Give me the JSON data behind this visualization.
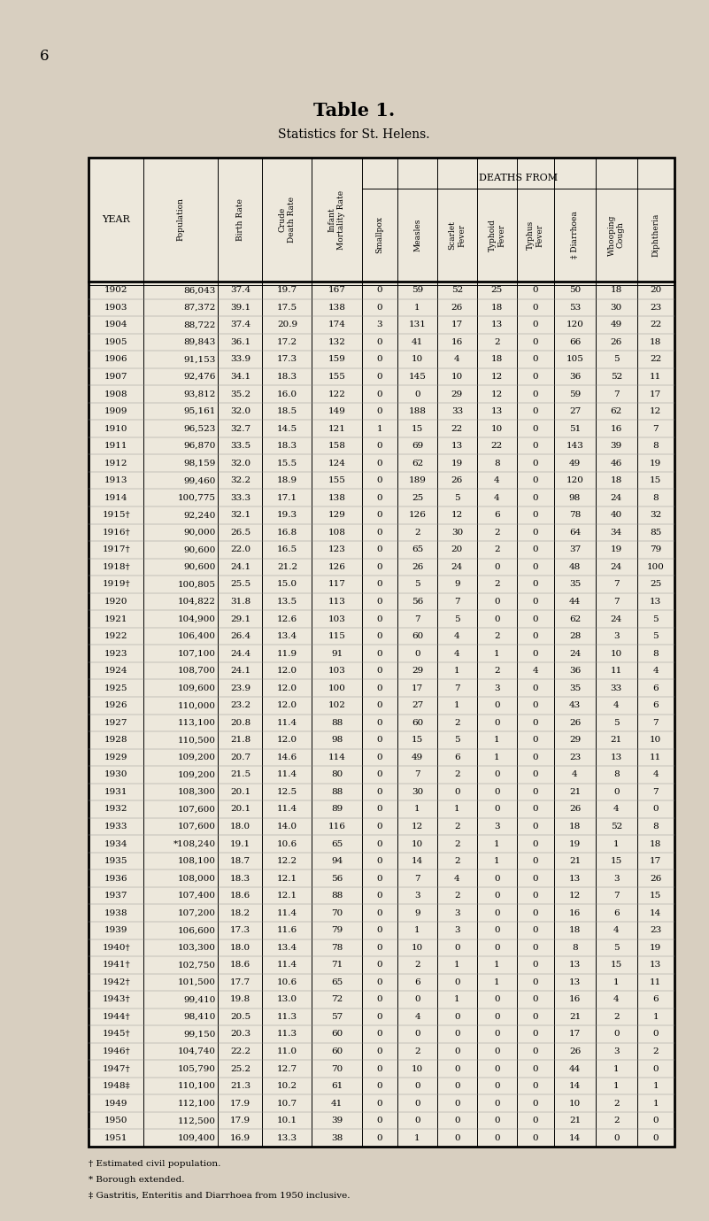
{
  "title": "Table 1.",
  "subtitle": "Statistics for St. Helens.",
  "page_number": "6",
  "col_headers": [
    "YEAR",
    "Population",
    "Birth Rate",
    "Crude\nDeath Rate",
    "Infant\nMortality Rate",
    "Smallpox",
    "Measles",
    "Scarlet\nFever",
    "Typhoid\nFever",
    "Typhus\nFever",
    "‡ Diarrhoea",
    "Whooping\nCough",
    "Diphtheria"
  ],
  "deaths_from_col": 5,
  "rows": [
    [
      "1902",
      "86,043",
      "37.4",
      "19.7",
      "167",
      "0",
      "59",
      "52",
      "25",
      "0",
      "50",
      "18",
      "20"
    ],
    [
      "1903",
      "87,372",
      "39.1",
      "17.5",
      "138",
      "0",
      "1",
      "26",
      "18",
      "0",
      "53",
      "30",
      "23"
    ],
    [
      "1904",
      "88,722",
      "37.4",
      "20.9",
      "174",
      "3",
      "131",
      "17",
      "13",
      "0",
      "120",
      "49",
      "22"
    ],
    [
      "1905",
      "89,843",
      "36.1",
      "17.2",
      "132",
      "0",
      "41",
      "16",
      "2",
      "0",
      "66",
      "26",
      "18"
    ],
    [
      "1906",
      "91,153",
      "33.9",
      "17.3",
      "159",
      "0",
      "10",
      "4",
      "18",
      "0",
      "105",
      "5",
      "22"
    ],
    [
      "1907",
      "92,476",
      "34.1",
      "18.3",
      "155",
      "0",
      "145",
      "10",
      "12",
      "0",
      "36",
      "52",
      "11"
    ],
    [
      "1908",
      "93,812",
      "35.2",
      "16.0",
      "122",
      "0",
      "0",
      "29",
      "12",
      "0",
      "59",
      "7",
      "17"
    ],
    [
      "1909",
      "95,161",
      "32.0",
      "18.5",
      "149",
      "0",
      "188",
      "33",
      "13",
      "0",
      "27",
      "62",
      "12"
    ],
    [
      "1910",
      "96,523",
      "32.7",
      "14.5",
      "121",
      "1",
      "15",
      "22",
      "10",
      "0",
      "51",
      "16",
      "7"
    ],
    [
      "1911",
      "96,870",
      "33.5",
      "18.3",
      "158",
      "0",
      "69",
      "13",
      "22",
      "0",
      "143",
      "39",
      "8"
    ],
    [
      "1912",
      "98,159",
      "32.0",
      "15.5",
      "124",
      "0",
      "62",
      "19",
      "8",
      "0",
      "49",
      "46",
      "19"
    ],
    [
      "1913",
      "99,460",
      "32.2",
      "18.9",
      "155",
      "0",
      "189",
      "26",
      "4",
      "0",
      "120",
      "18",
      "15"
    ],
    [
      "1914",
      "100,775",
      "33.3",
      "17.1",
      "138",
      "0",
      "25",
      "5",
      "4",
      "0",
      "98",
      "24",
      "8"
    ],
    [
      "1915†",
      "92,240",
      "32.1",
      "19.3",
      "129",
      "0",
      "126",
      "12",
      "6",
      "0",
      "78",
      "40",
      "32"
    ],
    [
      "1916†",
      "90,000",
      "26.5",
      "16.8",
      "108",
      "0",
      "2",
      "30",
      "2",
      "0",
      "64",
      "34",
      "85"
    ],
    [
      "1917†",
      "90,600",
      "22.0",
      "16.5",
      "123",
      "0",
      "65",
      "20",
      "2",
      "0",
      "37",
      "19",
      "79"
    ],
    [
      "1918†",
      "90,600",
      "24.1",
      "21.2",
      "126",
      "0",
      "26",
      "24",
      "0",
      "0",
      "48",
      "24",
      "100"
    ],
    [
      "1919†",
      "100,805",
      "25.5",
      "15.0",
      "117",
      "0",
      "5",
      "9",
      "2",
      "0",
      "35",
      "7",
      "25"
    ],
    [
      "1920",
      "104,822",
      "31.8",
      "13.5",
      "113",
      "0",
      "56",
      "7",
      "0",
      "0",
      "44",
      "7",
      "13"
    ],
    [
      "1921",
      "104,900",
      "29.1",
      "12.6",
      "103",
      "0",
      "7",
      "5",
      "0",
      "0",
      "62",
      "24",
      "5"
    ],
    [
      "1922",
      "106,400",
      "26.4",
      "13.4",
      "115",
      "0",
      "60",
      "4",
      "2",
      "0",
      "28",
      "3",
      "5"
    ],
    [
      "1923",
      "107,100",
      "24.4",
      "11.9",
      "91",
      "0",
      "0",
      "4",
      "1",
      "0",
      "24",
      "10",
      "8"
    ],
    [
      "1924",
      "108,700",
      "24.1",
      "12.0",
      "103",
      "0",
      "29",
      "1",
      "2",
      "4",
      "36",
      "11",
      "4"
    ],
    [
      "1925",
      "109,600",
      "23.9",
      "12.0",
      "100",
      "0",
      "17",
      "7",
      "3",
      "0",
      "35",
      "33",
      "6"
    ],
    [
      "1926",
      "110,000",
      "23.2",
      "12.0",
      "102",
      "0",
      "27",
      "1",
      "0",
      "0",
      "43",
      "4",
      "6"
    ],
    [
      "1927",
      "113,100",
      "20.8",
      "11.4",
      "88",
      "0",
      "60",
      "2",
      "0",
      "0",
      "26",
      "5",
      "7"
    ],
    [
      "1928",
      "110,500",
      "21.8",
      "12.0",
      "98",
      "0",
      "15",
      "5",
      "1",
      "0",
      "29",
      "21",
      "10"
    ],
    [
      "1929",
      "109,200",
      "20.7",
      "14.6",
      "114",
      "0",
      "49",
      "6",
      "1",
      "0",
      "23",
      "13",
      "11"
    ],
    [
      "1930",
      "109,200",
      "21.5",
      "11.4",
      "80",
      "0",
      "7",
      "2",
      "0",
      "0",
      "4",
      "8",
      "4"
    ],
    [
      "1931",
      "108,300",
      "20.1",
      "12.5",
      "88",
      "0",
      "30",
      "0",
      "0",
      "0",
      "21",
      "0",
      "7"
    ],
    [
      "1932",
      "107,600",
      "20.1",
      "11.4",
      "89",
      "0",
      "1",
      "1",
      "0",
      "0",
      "26",
      "4",
      "0"
    ],
    [
      "1933",
      "107,600",
      "18.0",
      "14.0",
      "116",
      "0",
      "12",
      "2",
      "3",
      "0",
      "18",
      "52",
      "8"
    ],
    [
      "1934",
      "*108,240",
      "19.1",
      "10.6",
      "65",
      "0",
      "10",
      "2",
      "1",
      "0",
      "19",
      "1",
      "18"
    ],
    [
      "1935",
      "108,100",
      "18.7",
      "12.2",
      "94",
      "0",
      "14",
      "2",
      "1",
      "0",
      "21",
      "15",
      "17"
    ],
    [
      "1936",
      "108,000",
      "18.3",
      "12.1",
      "56",
      "0",
      "7",
      "4",
      "0",
      "0",
      "13",
      "3",
      "26"
    ],
    [
      "1937",
      "107,400",
      "18.6",
      "12.1",
      "88",
      "0",
      "3",
      "2",
      "0",
      "0",
      "12",
      "7",
      "15"
    ],
    [
      "1938",
      "107,200",
      "18.2",
      "11.4",
      "70",
      "0",
      "9",
      "3",
      "0",
      "0",
      "16",
      "6",
      "14"
    ],
    [
      "1939",
      "106,600",
      "17.3",
      "11.6",
      "79",
      "0",
      "1",
      "3",
      "0",
      "0",
      "18",
      "4",
      "23"
    ],
    [
      "1940†",
      "103,300",
      "18.0",
      "13.4",
      "78",
      "0",
      "10",
      "0",
      "0",
      "0",
      "8",
      "5",
      "19"
    ],
    [
      "1941†",
      "102,750",
      "18.6",
      "11.4",
      "71",
      "0",
      "2",
      "1",
      "1",
      "0",
      "13",
      "15",
      "13"
    ],
    [
      "1942†",
      "101,500",
      "17.7",
      "10.6",
      "65",
      "0",
      "6",
      "0",
      "1",
      "0",
      "13",
      "1",
      "11"
    ],
    [
      "1943†",
      "99,410",
      "19.8",
      "13.0",
      "72",
      "0",
      "0",
      "1",
      "0",
      "0",
      "16",
      "4",
      "6"
    ],
    [
      "1944†",
      "98,410",
      "20.5",
      "11.3",
      "57",
      "0",
      "4",
      "0",
      "0",
      "0",
      "21",
      "2",
      "1"
    ],
    [
      "1945†",
      "99,150",
      "20.3",
      "11.3",
      "60",
      "0",
      "0",
      "0",
      "0",
      "0",
      "17",
      "0",
      "0"
    ],
    [
      "1946†",
      "104,740",
      "22.2",
      "11.0",
      "60",
      "0",
      "2",
      "0",
      "0",
      "0",
      "26",
      "3",
      "2"
    ],
    [
      "1947†",
      "105,790",
      "25.2",
      "12.7",
      "70",
      "0",
      "10",
      "0",
      "0",
      "0",
      "44",
      "1",
      "0"
    ],
    [
      "1948‡",
      "110,100",
      "21.3",
      "10.2",
      "61",
      "0",
      "0",
      "0",
      "0",
      "0",
      "14",
      "1",
      "1"
    ],
    [
      "1949",
      "112,100",
      "17.9",
      "10.7",
      "41",
      "0",
      "0",
      "0",
      "0",
      "0",
      "10",
      "2",
      "1"
    ],
    [
      "1950",
      "112,500",
      "17.9",
      "10.1",
      "39",
      "0",
      "0",
      "0",
      "0",
      "0",
      "21",
      "2",
      "0"
    ],
    [
      "1951",
      "109,400",
      "16.9",
      "13.3",
      "38",
      "0",
      "1",
      "0",
      "0",
      "0",
      "14",
      "0",
      "0"
    ]
  ],
  "footnotes": [
    "† Estimated civil population.",
    "* Borough extended.",
    "‡ Gastritis, Enteritis and Diarrhoea from 1950 inclusive."
  ],
  "bg_color": "#d8cfc0",
  "table_bg": "#ede8dc"
}
